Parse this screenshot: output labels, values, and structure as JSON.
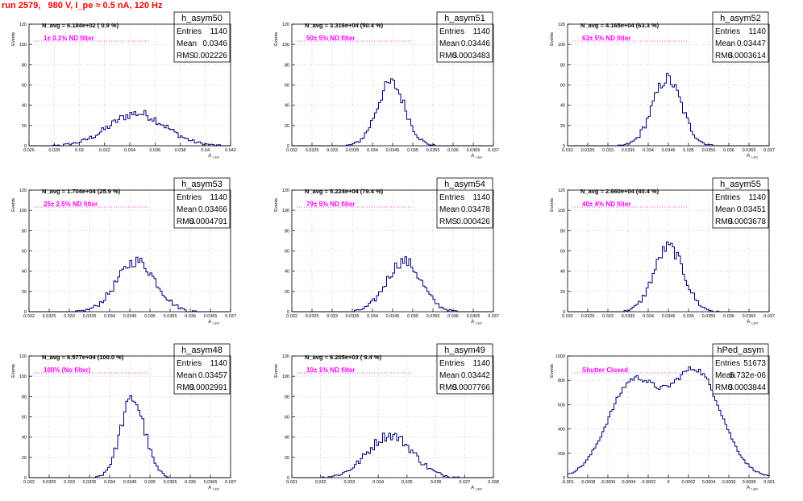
{
  "header": {
    "title": "run 2579,   980 V, I_pe ≈ 0.5 nA, 120 Hz"
  },
  "colors": {
    "histogram": "#000080",
    "annotation": "#ff00ff",
    "header": "#ff0000",
    "grid": "#b4b4b4"
  },
  "axis_labels": {
    "x": "A",
    "x_sub": "LED",
    "y": "Events"
  },
  "stat_labels": {
    "entries": "Entries",
    "mean": "Mean",
    "rms": "RMS"
  },
  "chart_data": [
    {
      "type": "histogram",
      "title": "h_asym50",
      "navg": "N_avg = 6.184e+02 ( 0.9 %)",
      "annotation": "1± 0.1% ND filter",
      "stats": {
        "entries": "1140",
        "mean": "0.0346",
        "rms": "0.002226"
      },
      "xlim": [
        0.026,
        0.042
      ],
      "ylim": [
        0,
        120
      ],
      "xticks": [
        "0.026",
        "0.028",
        "0.03",
        "0.032",
        "0.034",
        "0.036",
        "0.038",
        "0.04",
        "0.042"
      ],
      "yticks": [
        "0",
        "20",
        "40",
        "60",
        "80",
        "100",
        "120"
      ],
      "dist": {
        "mean": 0.0346,
        "sigma": 0.00223,
        "peak": 32
      }
    },
    {
      "type": "histogram",
      "title": "h_asym51",
      "navg": "N_avg = 3.316e+04 (50.4 %)",
      "annotation": "50± 5% ND filter",
      "stats": {
        "entries": "1140",
        "mean": "0.03446",
        "rms": "0.0003483"
      },
      "xlim": [
        0.032,
        0.037
      ],
      "ylim": [
        0,
        120
      ],
      "xticks": [
        "0.032",
        "0.0325",
        "0.033",
        "0.0335",
        "0.034",
        "0.0345",
        "0.035",
        "0.0355",
        "0.036",
        "0.0365",
        "0.037"
      ],
      "yticks": [
        "0",
        "20",
        "40",
        "60",
        "80",
        "100",
        "120"
      ],
      "dist": {
        "mean": 0.03446,
        "sigma": 0.000348,
        "peak": 62
      }
    },
    {
      "type": "histogram",
      "title": "h_asym52",
      "navg": "N_avg = 4.165e+04 (63.3 %)",
      "annotation": "63± 5% ND filter",
      "stats": {
        "entries": "1140",
        "mean": "0.03447",
        "rms": "0.0003614"
      },
      "xlim": [
        0.032,
        0.037
      ],
      "ylim": [
        0,
        120
      ],
      "xticks": [
        "0.032",
        "0.0325",
        "0.033",
        "0.0335",
        "0.034",
        "0.0345",
        "0.035",
        "0.0355",
        "0.036",
        "0.0365",
        "0.037"
      ],
      "yticks": [
        "0",
        "20",
        "40",
        "60",
        "80",
        "100",
        "120"
      ],
      "dist": {
        "mean": 0.03447,
        "sigma": 0.000361,
        "peak": 66
      }
    },
    {
      "type": "histogram",
      "title": "h_asym53",
      "navg": "N_avg = 1.704e+04 (25.9 %)",
      "annotation": "25± 2.5% ND filter",
      "stats": {
        "entries": "1140",
        "mean": "0.03466",
        "rms": "0.0004791"
      },
      "xlim": [
        0.032,
        0.037
      ],
      "ylim": [
        0,
        120
      ],
      "xticks": [
        "0.032",
        "0.0325",
        "0.033",
        "0.0335",
        "0.034",
        "0.0345",
        "0.035",
        "0.0355",
        "0.036",
        "0.0365",
        "0.037"
      ],
      "yticks": [
        "0",
        "20",
        "40",
        "60",
        "80",
        "100",
        "120"
      ],
      "dist": {
        "mean": 0.03466,
        "sigma": 0.000479,
        "peak": 50
      }
    },
    {
      "type": "histogram",
      "title": "h_asym54",
      "navg": "N_avg = 5.224e+04 (79.4 %)",
      "annotation": "79± 5% ND filter",
      "stats": {
        "entries": "1140",
        "mean": "0.03478",
        "rms": "0.000426"
      },
      "xlim": [
        0.032,
        0.037
      ],
      "ylim": [
        0,
        120
      ],
      "xticks": [
        "0.032",
        "0.0325",
        "0.033",
        "0.0335",
        "0.034",
        "0.0345",
        "0.035",
        "0.0355",
        "0.036",
        "0.0365",
        "0.037"
      ],
      "yticks": [
        "0",
        "20",
        "40",
        "60",
        "80",
        "100",
        "120"
      ],
      "dist": {
        "mean": 0.03478,
        "sigma": 0.000426,
        "peak": 50
      }
    },
    {
      "type": "histogram",
      "title": "h_asym55",
      "navg": "N_avg = 2.660e+04 (40.4 %)",
      "annotation": "40± 4% ND filter",
      "stats": {
        "entries": "1140",
        "mean": "0.03451",
        "rms": "0.0003678"
      },
      "xlim": [
        0.032,
        0.037
      ],
      "ylim": [
        0,
        120
      ],
      "xticks": [
        "0.032",
        "0.0325",
        "0.033",
        "0.0335",
        "0.034",
        "0.0345",
        "0.035",
        "0.0355",
        "0.036",
        "0.0365",
        "0.037"
      ],
      "yticks": [
        "0",
        "20",
        "40",
        "60",
        "80",
        "100",
        "120"
      ],
      "dist": {
        "mean": 0.03451,
        "sigma": 0.000368,
        "peak": 64
      }
    },
    {
      "type": "histogram",
      "title": "h_asym48",
      "navg": "N_avg = 6.577e+04 (100.0 %)",
      "annotation": "100% (No filter)",
      "stats": {
        "entries": "1140",
        "mean": "0.03457",
        "rms": "0.0002991"
      },
      "xlim": [
        0.032,
        0.037
      ],
      "ylim": [
        0,
        120
      ],
      "xticks": [
        "0.032",
        "0.0325",
        "0.033",
        "0.0335",
        "0.034",
        "0.0345",
        "0.035",
        "0.0355",
        "0.036",
        "0.0365",
        "0.037"
      ],
      "yticks": [
        "0",
        "20",
        "40",
        "60",
        "80",
        "100",
        "120"
      ],
      "dist": {
        "mean": 0.03457,
        "sigma": 0.000299,
        "peak": 78
      }
    },
    {
      "type": "histogram",
      "title": "h_asym49",
      "navg": "N_avg = 6.205e+03 ( 9.4 %)",
      "annotation": "10± 1% ND filter",
      "stats": {
        "entries": "1140",
        "mean": "0.03442",
        "rms": "0.0007766"
      },
      "xlim": [
        0.031,
        0.038
      ],
      "ylim": [
        0,
        120
      ],
      "xticks": [
        "0.031",
        "0.032",
        "0.033",
        "0.034",
        "0.035",
        "0.036",
        "0.037",
        "0.038"
      ],
      "yticks": [
        "0",
        "20",
        "40",
        "60",
        "80",
        "100",
        "120"
      ],
      "dist": {
        "mean": 0.03442,
        "sigma": 0.000777,
        "peak": 42
      }
    },
    {
      "type": "histogram",
      "title": "hPed_asym",
      "navg": "",
      "annotation": "Shutter Closed",
      "stats": {
        "entries": "51673",
        "mean": "5.732e-06",
        "rms": "0.0003844"
      },
      "xlim": [
        -0.001,
        0.001
      ],
      "ylim": [
        0,
        1000
      ],
      "xticks": [
        "-0.001",
        "-0.0008",
        "-0.0006",
        "-0.0004",
        "-0.0002",
        "0",
        "0.0002",
        "0.0004",
        "0.0006",
        "0.0008",
        "0.001"
      ],
      "yticks": [
        "0",
        "200",
        "400",
        "600",
        "800",
        "1000"
      ],
      "dist": {
        "mean": 0.0,
        "sigma": 0.000384,
        "peak": 820,
        "shape": "bimodal"
      }
    }
  ]
}
